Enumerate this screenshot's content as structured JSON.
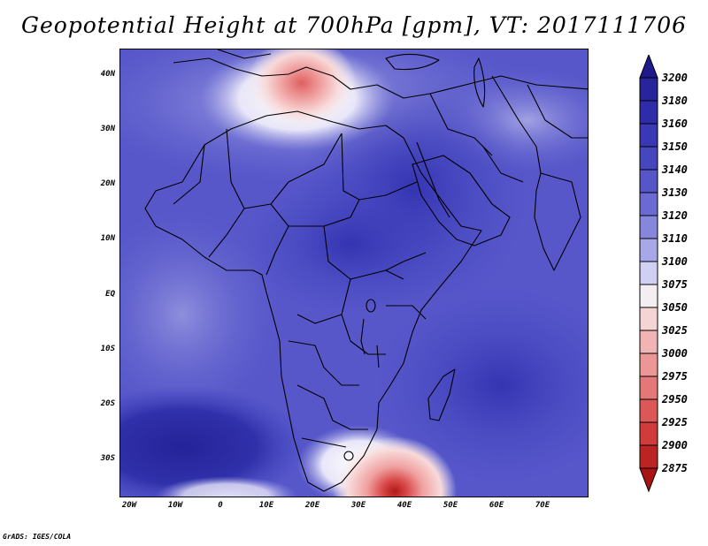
{
  "title": "Geopotential Height at 700hPa [gpm], VT: 2017111706",
  "lat_labels": [
    "40N",
    "30N",
    "20N",
    "10N",
    "EQ",
    "10S",
    "20S",
    "30S"
  ],
  "lon_labels": [
    "20W",
    "10W",
    "0",
    "10E",
    "20E",
    "30E",
    "40E",
    "50E",
    "60E",
    "70E"
  ],
  "colorbar": {
    "levels": [
      "3200",
      "3180",
      "3160",
      "3150",
      "3140",
      "3130",
      "3120",
      "3110",
      "3100",
      "3075",
      "3050",
      "3025",
      "3000",
      "2975",
      "2950",
      "2925",
      "2900",
      "2875"
    ],
    "colors": {
      "top": "#1e1a8c",
      "deep": "#2c2aa6",
      "mid": "#4444c0",
      "light": "#6b6bd4",
      "pale": "#a0a0e4",
      "white": "#f6f2f6",
      "pink": "#f4c4c4",
      "red": "#e06060",
      "darkred": "#b01818"
    }
  },
  "credit": "GrADS: IGES/COLA"
}
